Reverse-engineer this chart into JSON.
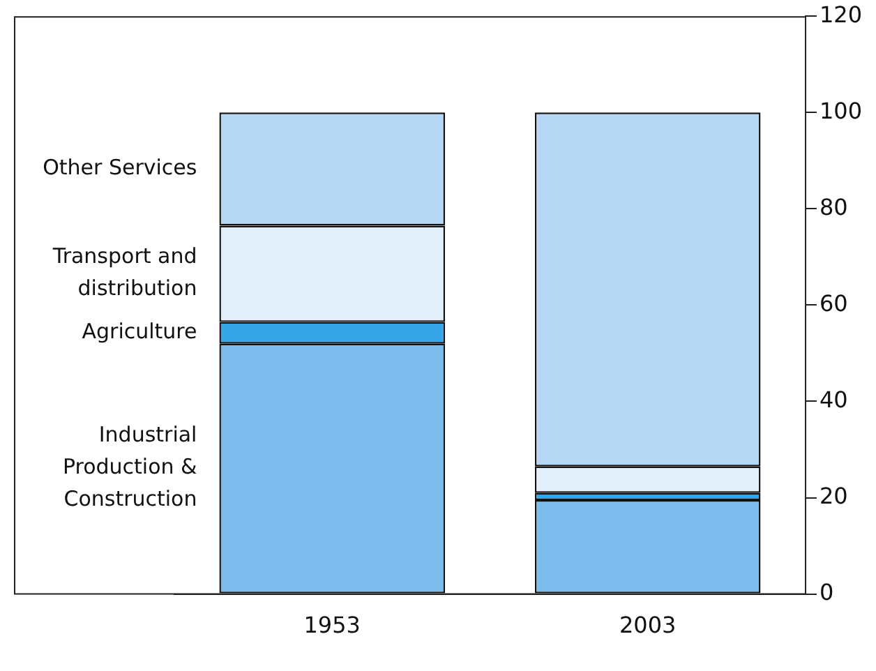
{
  "chart_data": {
    "type": "bar",
    "stacked": true,
    "categories": [
      "1953",
      "2003"
    ],
    "series": [
      {
        "name": "Industrial\nProduction &\nConstruction",
        "color": "#7bbcec",
        "values": [
          52,
          19.5
        ]
      },
      {
        "name": "Agriculture",
        "color": "#35a7e8",
        "values": [
          4.5,
          1.5
        ]
      },
      {
        "name": "Transport and\ndistribution",
        "color": "#e2effb",
        "values": [
          20,
          5.5
        ]
      },
      {
        "name": "Other Services",
        "color": "#b5d7f4",
        "values": [
          23.5,
          73.5
        ]
      }
    ],
    "ylim": [
      0,
      120
    ],
    "yticks": [
      0,
      20,
      40,
      60,
      80,
      100,
      120
    ],
    "grid": false,
    "legend": false
  }
}
